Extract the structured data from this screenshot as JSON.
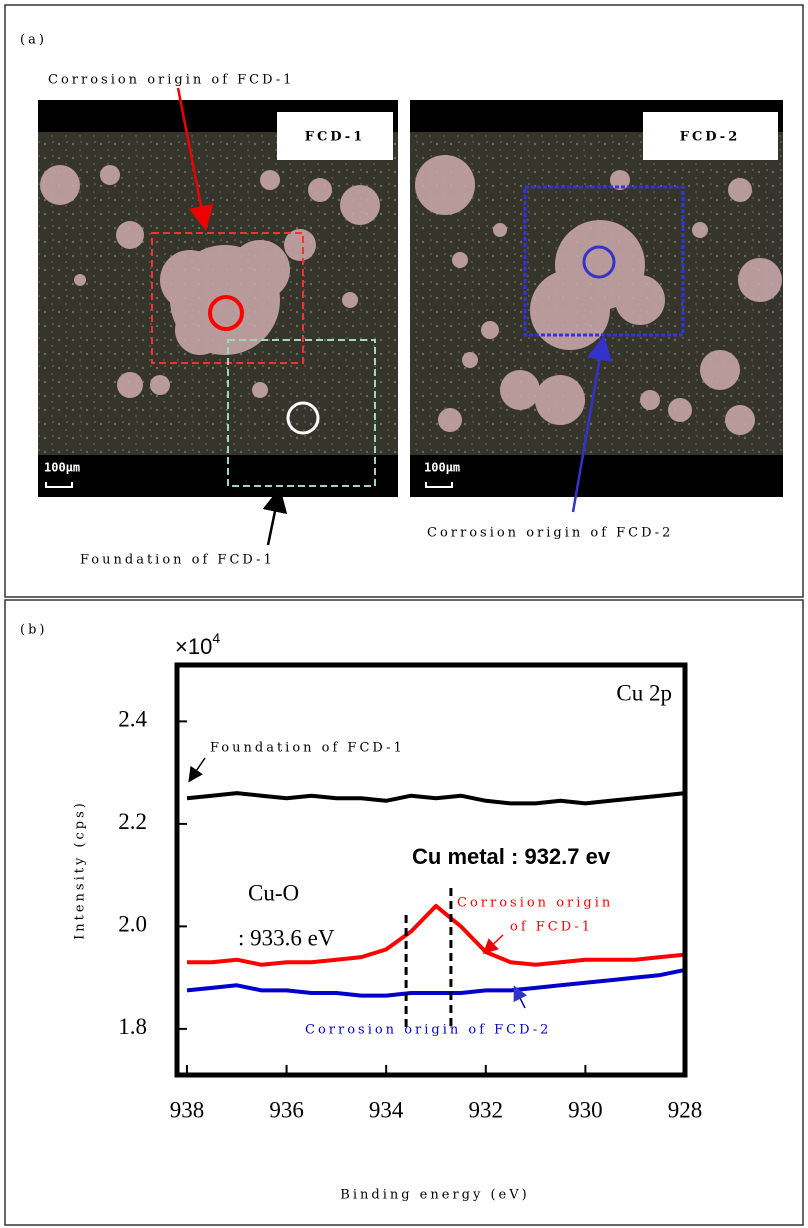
{
  "panel_a": {
    "label": "(a)",
    "callout_fcd1": "Corrosion origin of FCD-1",
    "image_fcd1_label": "FCD-1",
    "image_fcd2_label": "FCD-2",
    "scale_bar_fcd1": "100μm",
    "scale_bar_fcd2": "100μm",
    "callout_foundation": "Foundation of FCD-1",
    "callout_fcd2": "Corrosion origin of FCD-2"
  },
  "panel_b": {
    "label": "(b)"
  },
  "chart_data": {
    "type": "line",
    "x_label": "Binding energy (eV)",
    "y_label": "Intensity (cps)",
    "y_multiplier": {
      "base": "×10",
      "exponent": "4"
    },
    "x": [
      938,
      937.5,
      937,
      936.5,
      936,
      935.5,
      935,
      934.5,
      934,
      933.5,
      933,
      932.5,
      932,
      931.5,
      931,
      930.5,
      930,
      929.5,
      929,
      928.5,
      928
    ],
    "series": [
      {
        "name": "Foundation of FCD-1",
        "color": "#000000",
        "values": [
          2.25,
          2.255,
          2.26,
          2.255,
          2.25,
          2.255,
          2.25,
          2.25,
          2.245,
          2.255,
          2.25,
          2.255,
          2.245,
          2.24,
          2.24,
          2.245,
          2.24,
          2.245,
          2.25,
          2.255,
          2.26
        ]
      },
      {
        "name": "Corrosion origin of FCD-1",
        "color": "#ff0000",
        "values": [
          1.93,
          1.93,
          1.935,
          1.925,
          1.93,
          1.93,
          1.935,
          1.94,
          1.955,
          1.99,
          2.04,
          2.0,
          1.95,
          1.93,
          1.925,
          1.93,
          1.935,
          1.935,
          1.935,
          1.94,
          1.945
        ]
      },
      {
        "name": "Corrosion origin of FCD-2",
        "color": "#0000cc",
        "values": [
          1.875,
          1.88,
          1.885,
          1.875,
          1.875,
          1.87,
          1.87,
          1.865,
          1.865,
          1.87,
          1.87,
          1.87,
          1.875,
          1.875,
          1.88,
          1.885,
          1.89,
          1.895,
          1.9,
          1.905,
          1.915
        ]
      }
    ],
    "xlim": [
      938.2,
      928
    ],
    "xticks": [
      938,
      936,
      934,
      932,
      930,
      928
    ],
    "ylim": [
      1.71,
      2.51
    ],
    "yticks": [
      {
        "value": 1.8,
        "label": "1.8"
      },
      {
        "value": 2,
        "label": "2.0"
      },
      {
        "value": 2.2,
        "label": "2.2"
      },
      {
        "value": 2.4,
        "label": "2.4"
      }
    ],
    "annotations": {
      "element": "Cu 2p",
      "cu_o": "Cu-O",
      "cu_o_energy": ": 933.6 eV",
      "cu_metal": "Cu metal : 932.7 ev",
      "red_line_1": "Corrosion origin",
      "red_line_2": "of FCD-1"
    },
    "reference_lines": [
      933.6,
      932.7
    ]
  }
}
